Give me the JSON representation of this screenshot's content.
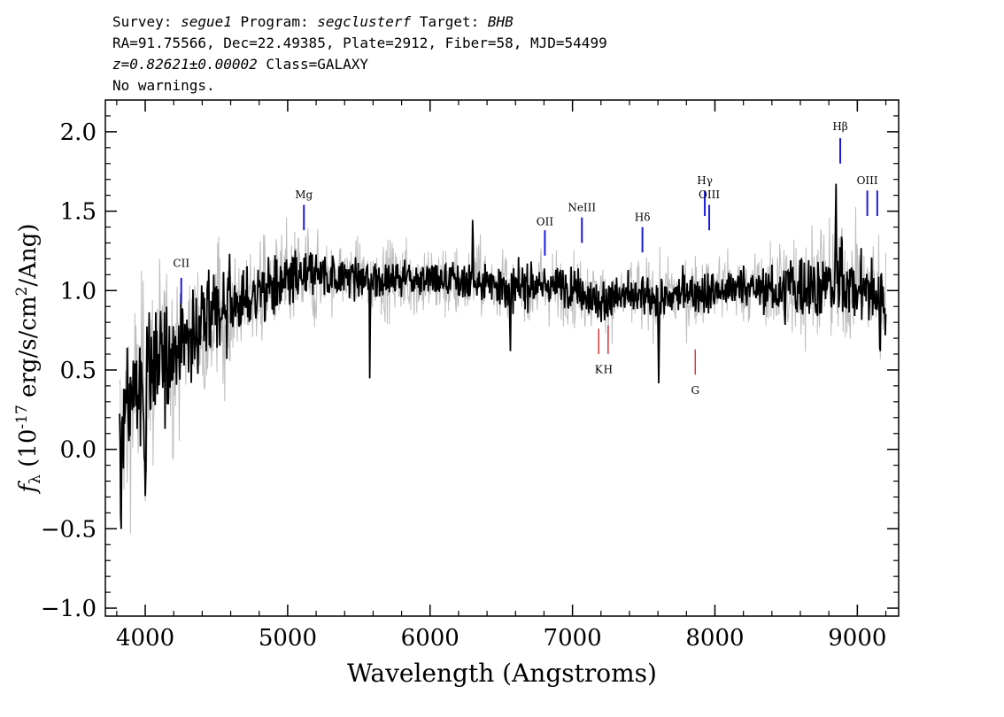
{
  "header": {
    "line1": {
      "survey_label": "Survey:",
      "survey": "segue1",
      "program_label": "Program:",
      "program": "segclusterf",
      "target_label": "Target:",
      "target": "BHB"
    },
    "line2": "RA=91.75566, Dec=22.49385, Plate=2912, Fiber=58, MJD=54499",
    "line3": {
      "redshift": "z=0.82621±0.00002",
      "class": "Class=GALAXY"
    },
    "line4": "No warnings."
  },
  "chart_data": {
    "type": "line",
    "xlabel": "Wavelength (Angstroms)",
    "ylabel": "f_λ (10^-17 erg/s/cm^2/Ang)",
    "xlim": [
      3720,
      9290
    ],
    "ylim": [
      -1.05,
      2.2
    ],
    "xticks": [
      4000,
      5000,
      6000,
      7000,
      8000,
      9000
    ],
    "xtick_labels": [
      "4000",
      "5000",
      "6000",
      "7000",
      "8000",
      "9000"
    ],
    "yticks": [
      -1.0,
      -0.5,
      0.0,
      0.5,
      1.0,
      1.5,
      2.0
    ],
    "ytick_labels": [
      "−1.0",
      "−0.5",
      "0.0",
      "0.5",
      "1.0",
      "1.5",
      "2.0"
    ],
    "grid": false,
    "series": [
      {
        "color": "#bdbdbd",
        "kind": "raw flux (noisy envelope)"
      },
      {
        "color": "#000000",
        "kind": "smoothed flux"
      }
    ],
    "continuum": [
      [
        3820,
        0.1
      ],
      [
        3900,
        0.3
      ],
      [
        4000,
        0.45
      ],
      [
        4100,
        0.55
      ],
      [
        4200,
        0.62
      ],
      [
        4300,
        0.7
      ],
      [
        4400,
        0.78
      ],
      [
        4500,
        0.85
      ],
      [
        4600,
        0.9
      ],
      [
        4700,
        0.93
      ],
      [
        4800,
        0.98
      ],
      [
        4900,
        1.02
      ],
      [
        5000,
        1.05
      ],
      [
        5100,
        1.08
      ],
      [
        5200,
        1.1
      ],
      [
        5400,
        1.09
      ],
      [
        5600,
        1.07
      ],
      [
        5800,
        1.08
      ],
      [
        6000,
        1.07
      ],
      [
        6200,
        1.05
      ],
      [
        6400,
        1.06
      ],
      [
        6600,
        1.02
      ],
      [
        6800,
        1.03
      ],
      [
        7000,
        1.02
      ],
      [
        7200,
        0.93
      ],
      [
        7400,
        0.97
      ],
      [
        7600,
        0.95
      ],
      [
        7800,
        0.98
      ],
      [
        8000,
        1.0
      ],
      [
        8200,
        1.03
      ],
      [
        8400,
        1.0
      ],
      [
        8600,
        1.02
      ],
      [
        8800,
        1.05
      ],
      [
        9000,
        1.03
      ],
      [
        9200,
        0.95
      ]
    ],
    "features": [
      {
        "x": 3830,
        "y": -0.7,
        "w": 6
      },
      {
        "x": 4000,
        "y": -0.35,
        "w": 10
      },
      {
        "x": 5577,
        "y": 0.32,
        "w": 5
      },
      {
        "x": 6300,
        "y": 1.68,
        "w": 4
      },
      {
        "x": 6563,
        "y": 0.55,
        "w": 6
      },
      {
        "x": 7605,
        "y": 0.4,
        "w": 7
      },
      {
        "x": 8850,
        "y": 1.7,
        "w": 6
      },
      {
        "x": 8890,
        "y": 1.45,
        "w": 5
      },
      {
        "x": 9160,
        "y": 0.5,
        "w": 5
      }
    ],
    "emission_lines": [
      {
        "label": "CII",
        "x": 4253,
        "tick_y": [
          0.92,
          1.08
        ],
        "text_y": 1.15
      },
      {
        "label": "Mg",
        "x": 5114,
        "tick_y": [
          1.38,
          1.54
        ],
        "text_y": 1.58
      },
      {
        "label": "OII",
        "x": 6806,
        "tick_y": [
          1.22,
          1.38
        ],
        "text_y": 1.41
      },
      {
        "label": "NeIII",
        "x": 7066,
        "tick_y": [
          1.3,
          1.46
        ],
        "text_y": 1.5
      },
      {
        "label": "Hδ",
        "x": 7491,
        "tick_y": [
          1.24,
          1.4
        ],
        "text_y": 1.44
      },
      {
        "label": "Hγ",
        "x": 7929,
        "tick_y": [
          1.47,
          1.63
        ],
        "text_y": 1.67
      },
      {
        "label": "OIII",
        "x": 7960,
        "tick_y": [
          1.38,
          1.54
        ],
        "text_y": 1.58
      },
      {
        "label": "Hβ",
        "x": 8880,
        "tick_y": [
          1.8,
          1.96
        ],
        "text_y": 2.01
      },
      {
        "label": "OIII",
        "x": 9070,
        "tick_y": [
          1.47,
          1.63
        ],
        "text_y": 1.67
      },
      {
        "label": "",
        "x": 9140,
        "tick_y": [
          1.47,
          1.63
        ],
        "text_y": 1.67
      }
    ],
    "absorption_lines": [
      {
        "label": "K",
        "x": 7184,
        "tick_y": [
          0.6,
          0.76
        ],
        "text_y": 0.48
      },
      {
        "label": "H",
        "x": 7250,
        "tick_y": [
          0.6,
          0.78
        ],
        "text_y": 0.48
      },
      {
        "label": "G",
        "x": 7862,
        "tick_y": [
          0.47,
          0.63
        ],
        "text_y": 0.35
      }
    ]
  }
}
